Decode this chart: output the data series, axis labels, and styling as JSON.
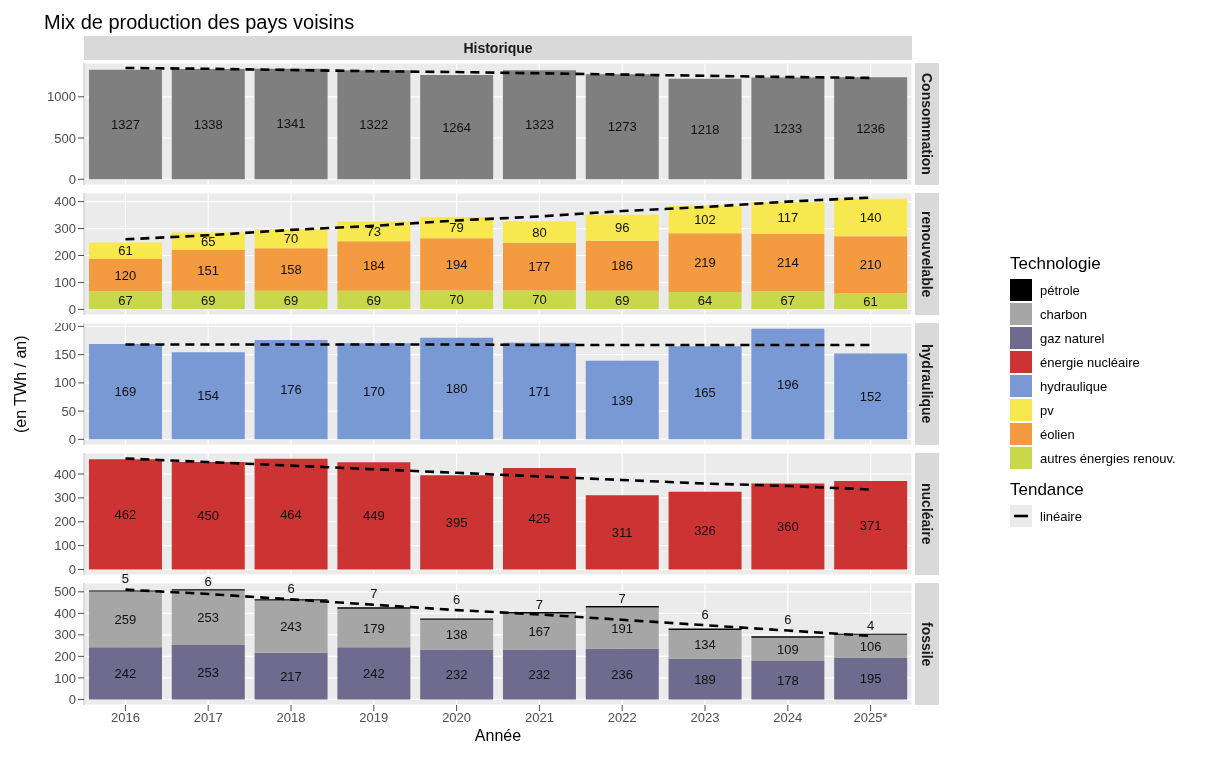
{
  "chart_data": [
    {
      "type": "bar",
      "title": "Mix de production des pays voisins",
      "subtitle": "Historique",
      "y2label": "Consommation",
      "categories": [
        null,
        null,
        null,
        null,
        null,
        null,
        null,
        null,
        null,
        null
      ],
      "stacked": true,
      "grid": true,
      "tick_labels": "y",
      "ylim": [
        -70,
        1410
      ],
      "yticks": [
        0,
        500,
        1000
      ],
      "legend": "right",
      "legend_title": "Tendance",
      "series": [
        {
          "color": "#7f7f7f",
          "values": [
            1327,
            1338,
            1341,
            1322,
            1264,
            1323,
            1273,
            1218,
            1233,
            1236
          ],
          "value_labels": [
            "1327",
            "1338",
            "1341",
            "1322",
            "1264",
            "1323",
            "1273",
            "1218",
            "1233",
            "1236"
          ]
        },
        {
          "type": "line",
          "name": "linéaire",
          "color": "#000000",
          "line_style": "dashed",
          "values": [
            1350,
            1340,
            1325,
            1310,
            1300,
            1285,
            1270,
            1255,
            1240,
            1230
          ]
        }
      ]
    },
    {
      "type": "bar",
      "y2label": "renouvelable",
      "categories": [
        null,
        null,
        null,
        null,
        null,
        null,
        null,
        null,
        null,
        null
      ],
      "stacked": true,
      "grid": true,
      "tick_labels": "y",
      "ylim": [
        -21,
        432
      ],
      "yticks": [
        0,
        100,
        200,
        300,
        400
      ],
      "legend": "right",
      "series": [
        {
          "name": "autres énergies renouv.",
          "color": "#c8d84a",
          "values": [
            67,
            69,
            69,
            69,
            70,
            70,
            69,
            64,
            67,
            61
          ],
          "value_labels": [
            "67",
            "69",
            "69",
            "69",
            "70",
            "70",
            "69",
            "64",
            "67",
            "61"
          ]
        },
        {
          "name": "éolien",
          "color": "#f49a40",
          "values": [
            120,
            151,
            158,
            184,
            194,
            177,
            186,
            219,
            214,
            210
          ],
          "value_labels": [
            "120",
            "151",
            "158",
            "184",
            "194",
            "177",
            "186",
            "219",
            "214",
            "210"
          ]
        },
        {
          "name": "pv",
          "color": "#f8e850",
          "values": [
            61,
            65,
            70,
            73,
            79,
            80,
            96,
            102,
            117,
            140
          ],
          "value_labels": [
            "61",
            "65",
            "70",
            "73",
            "79",
            "80",
            "96",
            "102",
            "117",
            "140"
          ]
        },
        {
          "type": "line",
          "color": "#000000",
          "line_style": "dashed",
          "values": [
            260,
            275,
            295,
            310,
            330,
            345,
            365,
            380,
            400,
            415
          ]
        }
      ]
    },
    {
      "type": "bar",
      "y2label": "hydraulique",
      "ylabel": "(en TWh / an)",
      "categories": [
        null,
        null,
        null,
        null,
        null,
        null,
        null,
        null,
        null,
        null
      ],
      "stacked": true,
      "grid": true,
      "tick_labels": "y",
      "ylim": [
        -10,
        206
      ],
      "yticks": [
        0,
        50,
        100,
        150,
        200
      ],
      "legend": "right",
      "series": [
        {
          "name": "hydraulique",
          "color": "#7899d4",
          "values": [
            169,
            154,
            176,
            170,
            180,
            171,
            139,
            165,
            196,
            152
          ],
          "value_labels": [
            "169",
            "154",
            "176",
            "170",
            "180",
            "171",
            "139",
            "165",
            "196",
            "152"
          ]
        },
        {
          "type": "line",
          "color": "#000000",
          "line_style": "dashed",
          "values": [
            168,
            168,
            168,
            168,
            168,
            167,
            167,
            167,
            167,
            167
          ]
        }
      ]
    },
    {
      "type": "bar",
      "y2label": "nucléaire",
      "categories": [
        null,
        null,
        null,
        null,
        null,
        null,
        null,
        null,
        null,
        null
      ],
      "stacked": true,
      "grid": true,
      "tick_labels": "y",
      "ylim": [
        -23,
        488
      ],
      "yticks": [
        0,
        100,
        200,
        300,
        400
      ],
      "legend": "right",
      "series": [
        {
          "name": "énergie nucléaire",
          "color": "#cc3333",
          "values": [
            462,
            450,
            464,
            449,
            395,
            425,
            311,
            326,
            360,
            371
          ],
          "value_labels": [
            "462",
            "450",
            "464",
            "449",
            "395",
            "425",
            "311",
            "326",
            "360",
            "371"
          ]
        },
        {
          "type": "line",
          "color": "#000000",
          "line_style": "dashed",
          "values": [
            465,
            450,
            435,
            420,
            405,
            390,
            375,
            360,
            350,
            335
          ]
        }
      ]
    },
    {
      "type": "bar",
      "y2label": "fossile",
      "xlabel": "Année",
      "categories": [
        "2016",
        "2017",
        "2018",
        "2019",
        "2020",
        "2021",
        "2022",
        "2023",
        "2024",
        "2025*"
      ],
      "stacked": true,
      "grid": true,
      "ylim": [
        -26,
        541
      ],
      "yticks": [
        0,
        100,
        200,
        300,
        400,
        500
      ],
      "legend": "right",
      "legend_title": "Technologie",
      "series": [
        {
          "name": "gaz naturel",
          "color": "#6e6b8e",
          "values": [
            242,
            253,
            217,
            242,
            232,
            232,
            236,
            189,
            178,
            195
          ],
          "value_labels": [
            "242",
            "253",
            "217",
            "242",
            "232",
            "232",
            "236",
            "189",
            "178",
            "195"
          ]
        },
        {
          "name": "charbon",
          "color": "#a6a6a6",
          "values": [
            259,
            253,
            243,
            179,
            138,
            167,
            191,
            134,
            109,
            106
          ],
          "value_labels": [
            "259",
            "253",
            "243",
            "179",
            "138",
            "167",
            "191",
            "134",
            "109",
            "106"
          ]
        },
        {
          "name": "pétrole",
          "color": "#000000",
          "values": [
            5,
            6,
            6,
            7,
            6,
            7,
            7,
            6,
            6,
            4
          ],
          "value_labels": [
            "5",
            "6",
            "6",
            "7",
            "6",
            "7",
            "7",
            "6",
            "6",
            "4"
          ]
        },
        {
          "type": "line",
          "color": "#000000",
          "line_style": "dashed",
          "values": [
            510,
            490,
            465,
            440,
            415,
            395,
            370,
            345,
            320,
            295
          ]
        }
      ]
    }
  ]
}
